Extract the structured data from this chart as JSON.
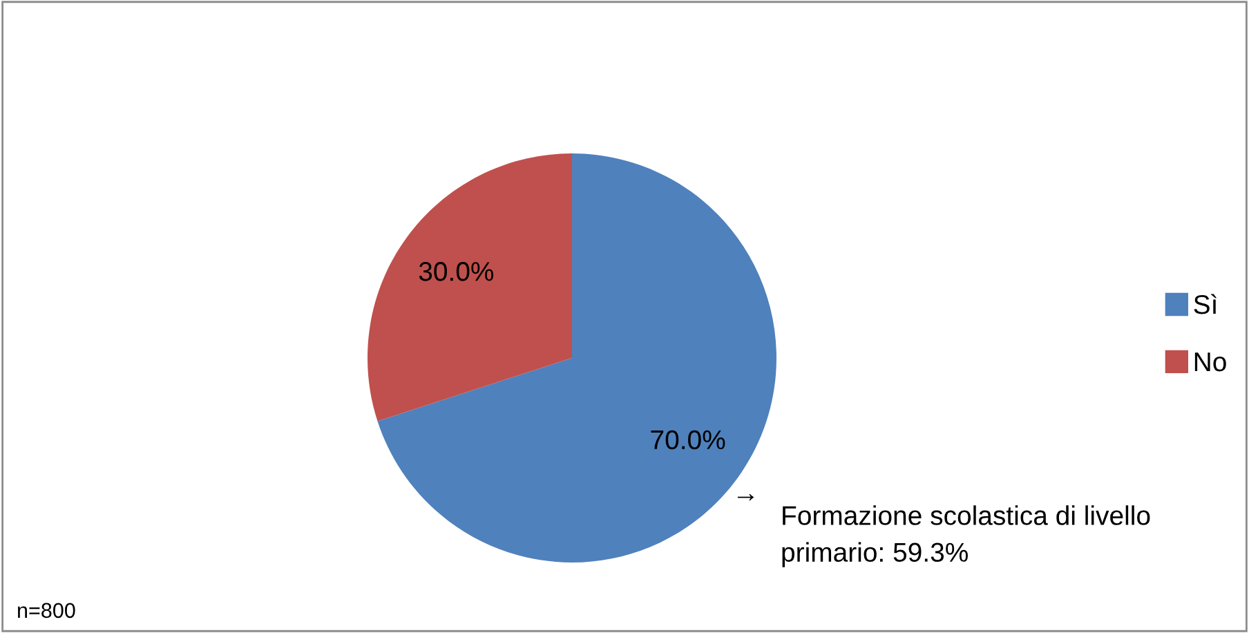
{
  "chart_data": {
    "type": "pie",
    "categories": [
      "Sì",
      "No"
    ],
    "values": [
      70,
      30
    ],
    "colors": [
      "#4f81bd",
      "#c0504d"
    ],
    "value_labels": [
      "70.0%",
      "30.0%"
    ],
    "legend": "right",
    "annotations": [
      "→",
      "Formazione scolastica di livello primario: 59.3%",
      "n=800"
    ]
  }
}
